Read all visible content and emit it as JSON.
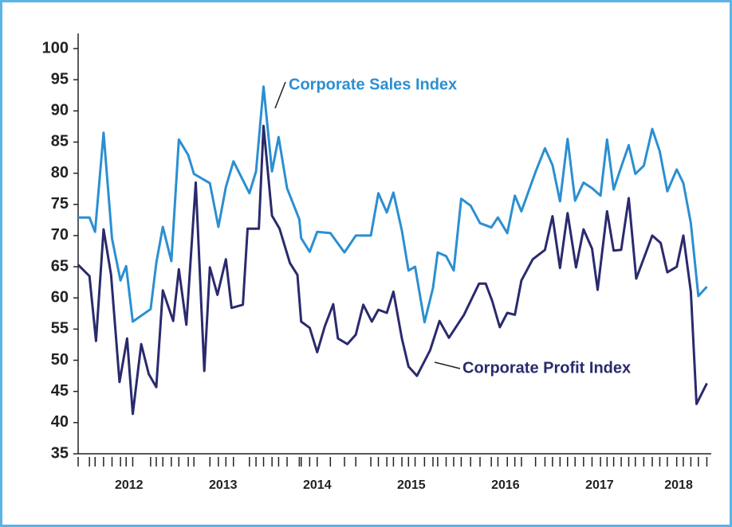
{
  "chart_data": {
    "type": "line",
    "xlim": [
      2011.96,
      2018.67
    ],
    "xticks": [
      {
        "value": 2012.5,
        "label": "2012"
      },
      {
        "value": 2013.5,
        "label": "2013"
      },
      {
        "value": 2014.5,
        "label": "2014"
      },
      {
        "value": 2015.5,
        "label": "2015"
      },
      {
        "value": 2016.5,
        "label": "2016"
      },
      {
        "value": 2017.5,
        "label": "2017"
      },
      {
        "value": 2018.34,
        "label": "2018"
      }
    ],
    "ylim": [
      35,
      100
    ],
    "yticks": [
      35,
      40,
      45,
      50,
      55,
      60,
      65,
      70,
      75,
      80,
      85,
      90,
      95,
      100
    ],
    "grid": false,
    "series": [
      {
        "name": "Corporate Sales Index",
        "color": "#2b8fd1",
        "x": [
          2011.96,
          2012.08,
          2012.14,
          2012.23,
          2012.32,
          2012.41,
          2012.47,
          2012.54,
          2012.73,
          2012.79,
          2012.86,
          2012.95,
          2013.03,
          2013.13,
          2013.19,
          2013.36,
          2013.45,
          2013.53,
          2013.61,
          2013.78,
          2013.85,
          2013.93,
          2014.02,
          2014.09,
          2014.18,
          2014.31,
          2014.33,
          2014.42,
          2014.5,
          2014.64,
          2014.79,
          2014.91,
          2015.07,
          2015.15,
          2015.24,
          2015.31,
          2015.4,
          2015.47,
          2015.54,
          2015.64,
          2015.73,
          2015.78,
          2015.87,
          2015.95,
          2016.03,
          2016.13,
          2016.23,
          2016.35,
          2016.42,
          2016.52,
          2016.6,
          2016.67,
          2016.82,
          2016.92,
          2017.0,
          2017.08,
          2017.16,
          2017.24,
          2017.33,
          2017.42,
          2017.51,
          2017.58,
          2017.65,
          2017.73,
          2017.81,
          2017.88,
          2017.97,
          2018.06,
          2018.14,
          2018.22,
          2018.32,
          2018.39,
          2018.47,
          2018.55,
          2018.64
        ],
        "values": [
          72.9,
          72.9,
          70.6,
          86.5,
          69.5,
          62.8,
          65.1,
          56.2,
          58.2,
          65.6,
          71.4,
          65.9,
          85.4,
          82.9,
          79.9,
          78.4,
          71.4,
          77.8,
          81.9,
          76.8,
          80.3,
          93.9,
          80.3,
          85.8,
          77.6,
          72.6,
          69.6,
          67.4,
          70.6,
          70.4,
          67.3,
          70.0,
          70.0,
          76.8,
          73.7,
          76.9,
          70.8,
          64.4,
          65.0,
          56.1,
          61.6,
          67.3,
          66.7,
          64.4,
          75.9,
          74.8,
          72.0,
          71.3,
          72.9,
          70.4,
          76.4,
          73.9,
          80.2,
          84.0,
          81.3,
          75.5,
          85.5,
          75.6,
          78.5,
          77.6,
          76.4,
          85.4,
          77.4,
          81.0,
          84.5,
          79.9,
          81.2,
          87.1,
          83.5,
          77.1,
          80.6,
          78.4,
          72.0,
          60.3,
          61.8
        ]
      },
      {
        "name": "Corporate Profit Index",
        "color": "#2a2a6e",
        "x": [
          2011.96,
          2012.08,
          2012.15,
          2012.23,
          2012.31,
          2012.4,
          2012.48,
          2012.54,
          2012.63,
          2012.71,
          2012.79,
          2012.86,
          2012.97,
          2013.03,
          2013.11,
          2013.21,
          2013.3,
          2013.36,
          2013.44,
          2013.53,
          2013.59,
          2013.71,
          2013.76,
          2013.88,
          2013.93,
          2014.02,
          2014.1,
          2014.21,
          2014.29,
          2014.33,
          2014.42,
          2014.5,
          2014.58,
          2014.67,
          2014.72,
          2014.82,
          2014.91,
          2014.99,
          2015.08,
          2015.15,
          2015.24,
          2015.31,
          2015.4,
          2015.47,
          2015.56,
          2015.7,
          2015.8,
          2015.9,
          2016.06,
          2016.22,
          2016.29,
          2016.36,
          2016.44,
          2016.52,
          2016.6,
          2016.67,
          2016.79,
          2016.92,
          2017.0,
          2017.08,
          2017.16,
          2017.25,
          2017.33,
          2017.42,
          2017.48,
          2017.58,
          2017.65,
          2017.73,
          2017.81,
          2017.89,
          2018.06,
          2018.15,
          2018.22,
          2018.32,
          2018.39,
          2018.47,
          2018.53,
          2018.64
        ],
        "values": [
          65.3,
          63.5,
          53.1,
          71.0,
          63.7,
          46.5,
          53.5,
          41.4,
          52.6,
          47.8,
          45.7,
          61.2,
          56.3,
          64.6,
          55.7,
          78.5,
          48.3,
          64.9,
          60.5,
          66.2,
          58.4,
          58.9,
          71.1,
          71.1,
          87.6,
          73.2,
          71.1,
          65.6,
          63.7,
          56.2,
          55.2,
          51.3,
          55.4,
          59.0,
          53.5,
          52.6,
          54.1,
          58.9,
          56.2,
          58.1,
          57.6,
          61.0,
          53.5,
          49.0,
          47.5,
          51.6,
          56.3,
          53.6,
          57.3,
          62.3,
          62.3,
          59.5,
          55.3,
          57.6,
          57.3,
          62.8,
          66.2,
          67.7,
          73.1,
          64.8,
          73.6,
          64.9,
          71.0,
          67.9,
          61.3,
          73.9,
          67.6,
          67.7,
          76.0,
          63.1,
          70.0,
          68.8,
          64.1,
          65.0,
          70.0,
          61.0,
          43.0,
          46.3
        ]
      }
    ]
  }
}
